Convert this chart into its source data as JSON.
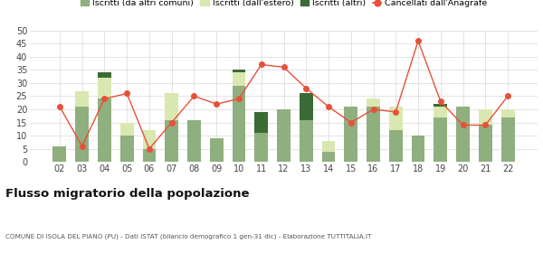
{
  "years": [
    "02",
    "03",
    "04",
    "05",
    "06",
    "07",
    "08",
    "09",
    "10",
    "11",
    "12",
    "13",
    "14",
    "15",
    "16",
    "17",
    "18",
    "19",
    "20",
    "21",
    "22"
  ],
  "iscritti_altri_comuni": [
    6,
    21,
    24,
    10,
    5,
    16,
    16,
    9,
    29,
    11,
    20,
    16,
    4,
    21,
    21,
    12,
    10,
    17,
    21,
    14,
    17
  ],
  "iscritti_estero": [
    0,
    6,
    8,
    5,
    7,
    10,
    0,
    0,
    5,
    0,
    0,
    0,
    4,
    0,
    3,
    9,
    0,
    4,
    0,
    6,
    3
  ],
  "iscritti_altri": [
    0,
    0,
    2,
    0,
    0,
    0,
    0,
    0,
    1,
    8,
    0,
    10,
    0,
    0,
    0,
    0,
    0,
    1,
    0,
    0,
    0
  ],
  "cancellati": [
    21,
    6,
    24,
    26,
    5,
    15,
    25,
    22,
    24,
    37,
    36,
    28,
    21,
    15,
    20,
    19,
    46,
    23,
    14,
    14,
    25
  ],
  "color_altri_comuni": "#8faf7e",
  "color_estero": "#d9e8b0",
  "color_altri": "#3a6b35",
  "color_cancellati": "#e8503a",
  "legend_labels": [
    "Iscritti (da altri comuni)",
    "Iscritti (dall'estero)",
    "Iscritti (altri)",
    "Cancellati dall'Anagrafe"
  ],
  "title": "Flusso migratorio della popolazione",
  "subtitle": "COMUNE DI ISOLA DEL PIANO (PU) - Dati ISTAT (bilancio demografico 1 gen-31 dic) - Elaborazione TUTTITALIA.IT",
  "ylim": [
    0,
    50
  ],
  "yticks": [
    0,
    5,
    10,
    15,
    20,
    25,
    30,
    35,
    40,
    45,
    50
  ],
  "background_color": "#ffffff",
  "grid_color": "#d8d8d8"
}
